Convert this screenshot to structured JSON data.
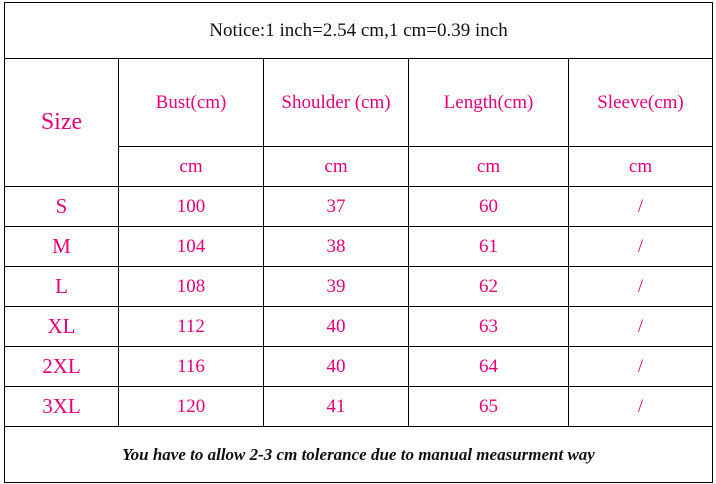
{
  "notice": "Notice:1 inch=2.54 cm,1 cm=0.39 inch",
  "table": {
    "size_header": "Size",
    "columns": [
      "Bust(cm)",
      "Shoulder (cm)",
      "Length(cm)",
      "Sleeve(cm)"
    ],
    "units": [
      "cm",
      "cm",
      "cm",
      "cm"
    ],
    "rows": [
      [
        "S",
        100,
        37,
        60,
        "/"
      ],
      [
        "M",
        104,
        38,
        61,
        "/"
      ],
      [
        "L",
        108,
        39,
        62,
        "/"
      ],
      [
        "XL",
        112,
        40,
        63,
        "/"
      ],
      [
        "2XL",
        116,
        40,
        64,
        "/"
      ],
      [
        "3XL",
        120,
        41,
        65,
        "/"
      ]
    ]
  },
  "footer": "You have to allow 2-3 cm tolerance due to manual measurment way"
}
